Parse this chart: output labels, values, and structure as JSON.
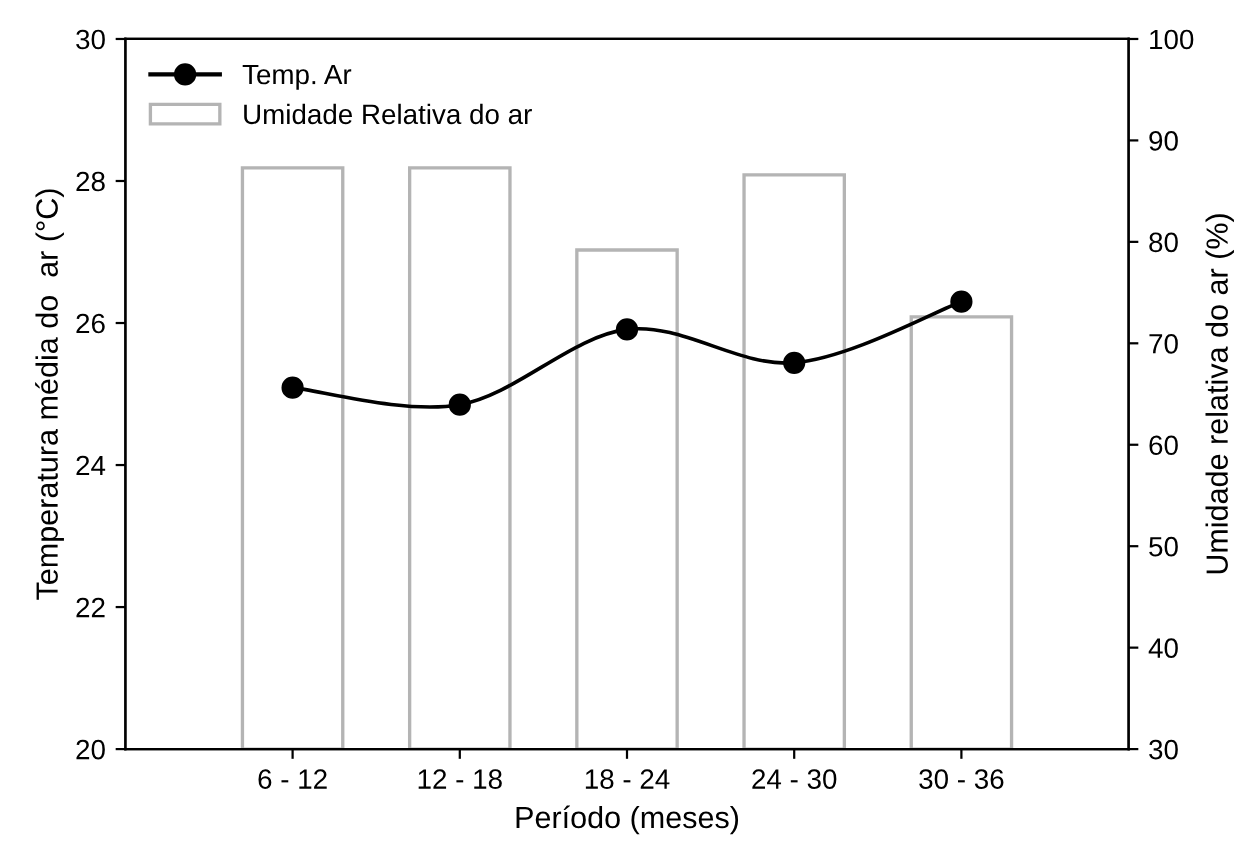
{
  "chart_data": {
    "type": "line",
    "xlabel": "Período (meses)",
    "ylabel": "Temperatura média do  ar (°C)",
    "y2label": "Umidade relativa do ar (%)",
    "categories": [
      "6 - 12",
      "12 - 18",
      "18 - 24",
      "24 - 30",
      "30 - 36"
    ],
    "series": [
      {
        "name": "Temp. Ar",
        "color": "#000000",
        "values": [
          25.09,
          24.85,
          25.91,
          25.44,
          26.3
        ]
      },
      {
        "name": "Umidade Relativa do ar",
        "type": "bar",
        "axis": "y2",
        "color": "#b4b4b4",
        "values": [
          87.3,
          87.3,
          79.2,
          86.6,
          72.6
        ]
      }
    ],
    "ylim": [
      20,
      30
    ],
    "yticks": [
      20,
      22,
      24,
      26,
      28,
      30
    ],
    "y2lim": [
      30,
      100
    ],
    "y2ticks": [
      30,
      40,
      50,
      60,
      70,
      80,
      90,
      100
    ],
    "marker": "circle",
    "line_style": "solid",
    "grid": false,
    "legend": "top left"
  }
}
